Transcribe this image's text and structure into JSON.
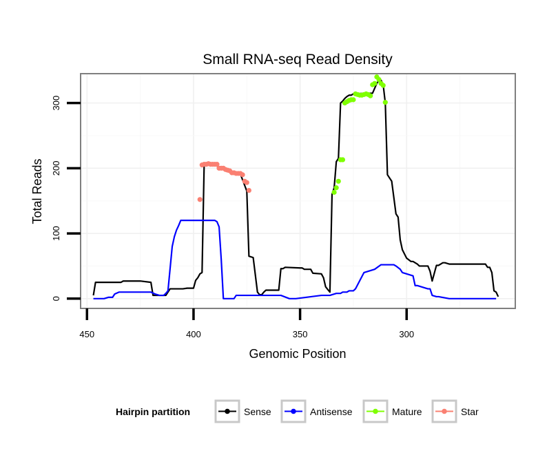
{
  "chart_data": {
    "type": "line",
    "title": "Small RNA-seq Read Density",
    "xlabel": "Genomic Position",
    "ylabel": "Total Reads",
    "xlim": [
      453,
      249
    ],
    "x_reversed": true,
    "ylim": [
      -15,
      345
    ],
    "x_ticks": [
      450,
      400,
      350,
      300
    ],
    "y_ticks": [
      0,
      100,
      200,
      300
    ],
    "grid": true,
    "legend": {
      "title": "Hairpin partition",
      "position": "bottom",
      "entries": [
        "Sense",
        "Antisense",
        "Mature",
        "Star"
      ]
    },
    "series": [
      {
        "name": "Sense",
        "color": "#000000",
        "style": "line",
        "x": [
          447,
          446,
          440,
          434,
          433,
          425,
          420,
          419,
          413,
          411,
          407,
          405,
          403,
          402,
          400,
          399,
          398,
          397,
          396,
          395,
          390,
          385,
          380,
          378,
          375,
          374,
          372,
          370,
          369,
          368,
          367,
          366,
          365,
          360,
          359,
          358,
          357,
          350,
          349,
          348,
          346,
          345,
          344,
          340,
          339,
          338,
          337,
          336,
          335,
          334,
          333,
          332,
          331,
          330,
          329,
          328,
          327,
          326,
          325,
          324,
          320,
          316,
          314,
          313,
          312,
          311,
          310,
          309,
          308,
          307,
          305,
          304,
          303,
          302,
          300,
          298,
          297,
          296,
          295,
          294,
          293,
          292,
          291,
          290,
          289,
          288,
          286,
          285,
          283,
          282,
          280,
          270,
          265,
          263,
          262,
          261,
          260,
          259,
          258,
          257
        ],
        "y": [
          5,
          25,
          25,
          25,
          27,
          27,
          25,
          5,
          5,
          15,
          15,
          15,
          16,
          16,
          16,
          28,
          32,
          38,
          40,
          208,
          205,
          197,
          193,
          191,
          165,
          65,
          63,
          10,
          6,
          6,
          10,
          13,
          13,
          13,
          46,
          46,
          48,
          47,
          47,
          45,
          45,
          45,
          39,
          38,
          32,
          18,
          14,
          10,
          160,
          170,
          210,
          215,
          300,
          303,
          307,
          310,
          312,
          312,
          314,
          314,
          315,
          315,
          330,
          335,
          335,
          328,
          300,
          190,
          185,
          180,
          130,
          125,
          90,
          75,
          62,
          57,
          57,
          55,
          53,
          50,
          50,
          50,
          50,
          50,
          42,
          27,
          51,
          51,
          55,
          55,
          53,
          53,
          53,
          53,
          48,
          48,
          40,
          12,
          10,
          3
        ]
      },
      {
        "name": "Antisense",
        "color": "#0000ff",
        "style": "line",
        "x": [
          447,
          442,
          440,
          438,
          437,
          435,
          420,
          418,
          416,
          414,
          413,
          412,
          410,
          409,
          408,
          407,
          406,
          405,
          404,
          390,
          389,
          388,
          387,
          386,
          381,
          380,
          370,
          360,
          359,
          355,
          352,
          340,
          338,
          336,
          333,
          332,
          331,
          330,
          329,
          328,
          327,
          325,
          324,
          320,
          315,
          312,
          311,
          310,
          309,
          308,
          306,
          305,
          303,
          302,
          297,
          296,
          295,
          290,
          289,
          288,
          286,
          285,
          280,
          270,
          265,
          260,
          258
        ],
        "y": [
          0,
          0,
          2,
          2,
          7,
          10,
          10,
          7,
          5,
          5,
          8,
          12,
          80,
          95,
          105,
          112,
          120,
          120,
          120,
          120,
          118,
          110,
          60,
          0,
          0,
          5,
          5,
          5,
          5,
          0,
          0,
          5,
          5,
          5,
          8,
          8,
          8,
          10,
          10,
          10,
          12,
          12,
          15,
          40,
          45,
          52,
          52,
          52,
          52,
          52,
          52,
          50,
          45,
          40,
          35,
          20,
          20,
          15,
          15,
          5,
          3,
          3,
          0,
          0,
          0,
          0,
          0
        ]
      },
      {
        "name": "Mature",
        "color": "#7fff00",
        "style": "points",
        "x": [
          334,
          333,
          332,
          331,
          330,
          329,
          328,
          327,
          326,
          325,
          324,
          323,
          322,
          321,
          320,
          319,
          318,
          317,
          316,
          315,
          314,
          313,
          312,
          311,
          310
        ],
        "y": [
          163,
          170,
          180,
          213,
          213,
          300,
          302,
          304,
          305,
          305,
          314,
          313,
          312,
          312,
          313,
          314,
          313,
          311,
          328,
          330,
          340,
          336,
          330,
          327,
          301
        ]
      },
      {
        "name": "Star",
        "color": "#fa8072",
        "style": "points",
        "x": [
          397,
          396,
          395,
          394,
          393,
          392,
          391,
          390,
          389,
          388,
          387,
          386,
          385,
          384,
          383,
          382,
          381,
          380,
          379,
          378,
          377,
          376,
          375,
          374
        ],
        "y": [
          152,
          205,
          206,
          206,
          207,
          206,
          206,
          206,
          206,
          200,
          200,
          200,
          198,
          197,
          196,
          193,
          193,
          192,
          192,
          192,
          190,
          180,
          178,
          166
        ]
      }
    ]
  }
}
